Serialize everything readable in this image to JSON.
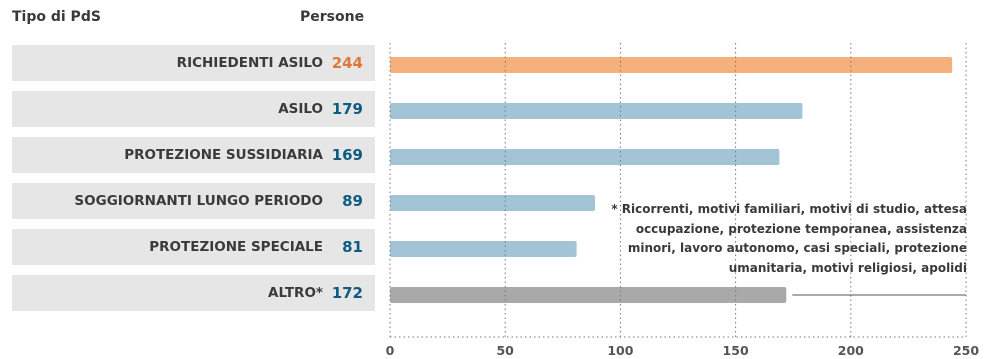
{
  "header": {
    "type_label": "Tipo di PdS",
    "people_label": "Persone"
  },
  "note": "* Ricorrenti, motivi familiari, motivi di studio, attesa occupazione, protezione temporanea, assistenza minori, lavoro autonomo, casi speciali, protezione umanitaria, motivi religiosi, apolidi",
  "colors": {
    "highlight": "#f5b07e",
    "blue_bar": "#a3c3d6",
    "gray_bar": "#a9a9a9",
    "highlight_text": "#e0783c",
    "blue_text": "#0d5c80",
    "row_bg": "#e6e6e6"
  },
  "chart_data": {
    "type": "bar",
    "orientation": "horizontal",
    "categories": [
      "RICHIEDENTI ASILO",
      "ASILO",
      "PROTEZIONE SUSSIDIARIA",
      "SOGGIORNANTI LUNGO PERIODO",
      "PROTEZIONE SPECIALE",
      "ALTRO*"
    ],
    "values": [
      244,
      179,
      169,
      89,
      81,
      172
    ],
    "value_labels": [
      "244",
      "179",
      "169",
      "89",
      "81",
      "172"
    ],
    "xlim": [
      0,
      250
    ],
    "xticks": [
      "0",
      "50",
      "100",
      "150",
      "200",
      "250"
    ],
    "grid": "vertical dotted",
    "xlabel": "",
    "ylabel": ""
  }
}
